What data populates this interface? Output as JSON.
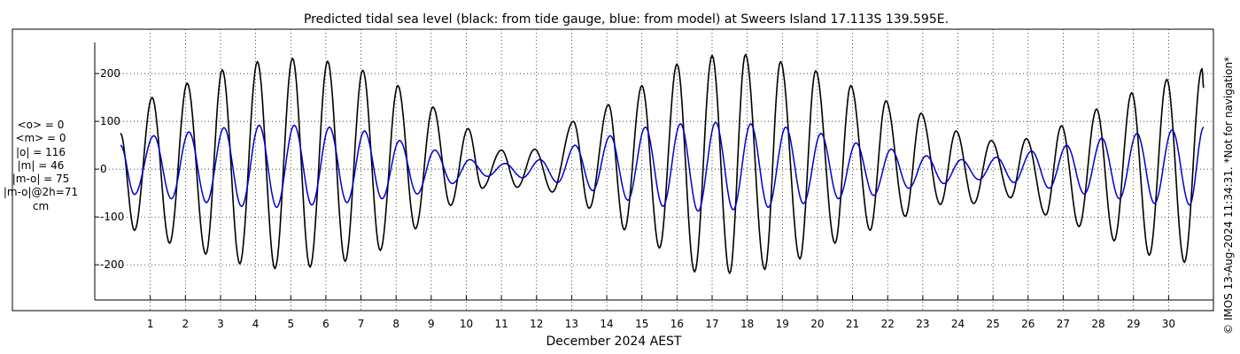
{
  "chart_data": {
    "type": "line",
    "title": "Predicted tidal sea level (black: from tide gauge, blue: from model) at Sweers Island 17.113S 139.595E.",
    "xlabel": "December 2024 AEST",
    "ylabel": "",
    "ylim": [
      -270,
      265
    ],
    "xlim_days": [
      0.15,
      31
    ],
    "yticks": [
      -200,
      -100,
      0,
      100,
      200
    ],
    "ytick_labels": [
      "-200",
      "-100",
      "0",
      "100",
      "200"
    ],
    "xticks": [
      1,
      2,
      3,
      4,
      5,
      6,
      7,
      8,
      9,
      10,
      11,
      12,
      13,
      14,
      15,
      16,
      17,
      18,
      19,
      20,
      21,
      22,
      23,
      24,
      25,
      26,
      27,
      28,
      29,
      30
    ],
    "xtick_labels": [
      "1",
      "2",
      "3",
      "4",
      "5",
      "6",
      "7",
      "8",
      "9",
      "10",
      "11",
      "12",
      "13",
      "14",
      "15",
      "16",
      "17",
      "18",
      "19",
      "20",
      "21",
      "22",
      "23",
      "24",
      "25",
      "26",
      "27",
      "28",
      "29",
      "30"
    ],
    "grid": "dotted",
    "units": "cm",
    "series": [
      {
        "color": "#000000",
        "extrema": [
          [
            0.15,
            75
          ],
          [
            0.55,
            -128
          ],
          [
            1.05,
            150
          ],
          [
            1.55,
            -155
          ],
          [
            2.05,
            180
          ],
          [
            2.58,
            -178
          ],
          [
            3.05,
            208
          ],
          [
            3.55,
            -198
          ],
          [
            4.05,
            225
          ],
          [
            4.55,
            -208
          ],
          [
            5.05,
            232
          ],
          [
            5.55,
            -205
          ],
          [
            6.05,
            226
          ],
          [
            6.55,
            -193
          ],
          [
            7.05,
            207
          ],
          [
            7.55,
            -170
          ],
          [
            8.05,
            175
          ],
          [
            8.55,
            -125
          ],
          [
            9.05,
            130
          ],
          [
            9.55,
            -76
          ],
          [
            10.05,
            85
          ],
          [
            10.45,
            -40
          ],
          [
            11.0,
            40
          ],
          [
            11.45,
            -38
          ],
          [
            11.95,
            42
          ],
          [
            12.45,
            -48
          ],
          [
            13.05,
            100
          ],
          [
            13.5,
            -82
          ],
          [
            14.05,
            135
          ],
          [
            14.5,
            -127
          ],
          [
            15.0,
            175
          ],
          [
            15.5,
            -165
          ],
          [
            16.0,
            220
          ],
          [
            16.5,
            -215
          ],
          [
            17.0,
            238
          ],
          [
            17.5,
            -218
          ],
          [
            17.95,
            240
          ],
          [
            18.5,
            -210
          ],
          [
            18.95,
            225
          ],
          [
            19.5,
            -188
          ],
          [
            19.95,
            206
          ],
          [
            20.5,
            -155
          ],
          [
            20.95,
            175
          ],
          [
            21.5,
            -128
          ],
          [
            21.95,
            143
          ],
          [
            22.5,
            -99
          ],
          [
            22.95,
            117
          ],
          [
            23.5,
            -74
          ],
          [
            23.95,
            80
          ],
          [
            24.45,
            -72
          ],
          [
            24.95,
            60
          ],
          [
            25.5,
            -60
          ],
          [
            25.95,
            64
          ],
          [
            26.5,
            -96
          ],
          [
            26.95,
            91
          ],
          [
            27.45,
            -120
          ],
          [
            27.95,
            126
          ],
          [
            28.45,
            -150
          ],
          [
            28.95,
            160
          ],
          [
            29.45,
            -180
          ],
          [
            29.95,
            188
          ],
          [
            30.45,
            -195
          ],
          [
            30.95,
            210
          ],
          [
            31.0,
            170
          ]
        ]
      },
      {
        "color": "#0000cc",
        "extrema": [
          [
            0.15,
            50
          ],
          [
            0.55,
            -53
          ],
          [
            1.1,
            70
          ],
          [
            1.6,
            -62
          ],
          [
            2.1,
            78
          ],
          [
            2.6,
            -70
          ],
          [
            3.1,
            87
          ],
          [
            3.6,
            -78
          ],
          [
            4.1,
            92
          ],
          [
            4.6,
            -80
          ],
          [
            5.1,
            92
          ],
          [
            5.6,
            -75
          ],
          [
            6.1,
            88
          ],
          [
            6.6,
            -70
          ],
          [
            7.1,
            80
          ],
          [
            7.6,
            -62
          ],
          [
            8.1,
            60
          ],
          [
            8.6,
            -52
          ],
          [
            9.1,
            40
          ],
          [
            9.6,
            -30
          ],
          [
            10.1,
            20
          ],
          [
            10.6,
            -15
          ],
          [
            11.1,
            12
          ],
          [
            11.6,
            -18
          ],
          [
            12.1,
            20
          ],
          [
            12.6,
            -28
          ],
          [
            13.1,
            50
          ],
          [
            13.6,
            -45
          ],
          [
            14.1,
            70
          ],
          [
            14.6,
            -65
          ],
          [
            15.1,
            88
          ],
          [
            15.6,
            -78
          ],
          [
            16.1,
            95
          ],
          [
            16.6,
            -88
          ],
          [
            17.1,
            98
          ],
          [
            17.6,
            -85
          ],
          [
            18.1,
            95
          ],
          [
            18.6,
            -80
          ],
          [
            19.1,
            88
          ],
          [
            19.6,
            -72
          ],
          [
            20.1,
            75
          ],
          [
            20.6,
            -62
          ],
          [
            21.1,
            55
          ],
          [
            21.6,
            -55
          ],
          [
            22.1,
            42
          ],
          [
            22.6,
            -40
          ],
          [
            23.1,
            28
          ],
          [
            23.6,
            -30
          ],
          [
            24.1,
            20
          ],
          [
            24.6,
            -22
          ],
          [
            25.1,
            25
          ],
          [
            25.6,
            -28
          ],
          [
            26.1,
            38
          ],
          [
            26.6,
            -40
          ],
          [
            27.1,
            50
          ],
          [
            27.6,
            -52
          ],
          [
            28.1,
            65
          ],
          [
            28.6,
            -62
          ],
          [
            29.1,
            75
          ],
          [
            29.6,
            -72
          ],
          [
            30.1,
            82
          ],
          [
            30.6,
            -75
          ],
          [
            31.0,
            88
          ]
        ]
      }
    ]
  },
  "stats": [
    "<o> = 0",
    "<m> = 0",
    "|o| = 116",
    "|m| = 46",
    "|m-o| = 75",
    "|m-o|@2h=71",
    "cm"
  ],
  "copyright": "© IMOS 13-Aug-2024 11:34:31. *Not for navigation*"
}
